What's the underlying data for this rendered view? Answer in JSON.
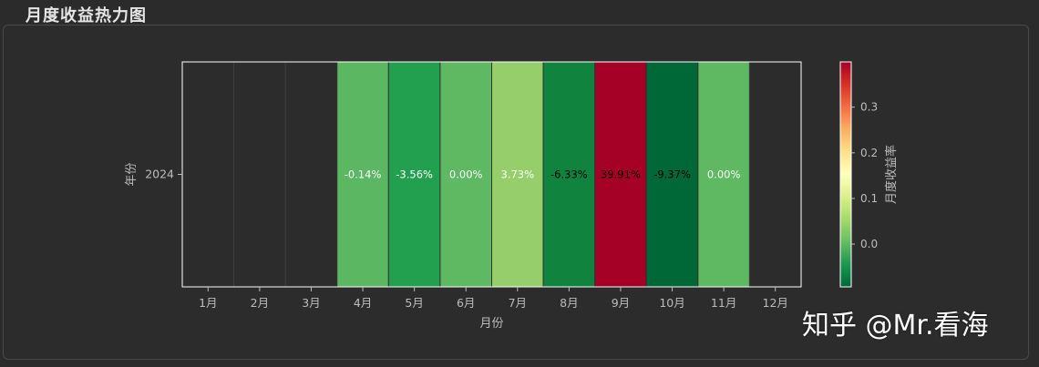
{
  "section": {
    "title": "月度收益热力图"
  },
  "watermark": "知乎 @Mr.看海",
  "colors": {
    "background": "#2b2b2b",
    "plot_empty": "#2c2c2c",
    "axis": "#ffffff",
    "label": "#bdbdbd"
  },
  "chart_data": {
    "type": "heatmap",
    "xlabel": "月份",
    "ylabel": "年份",
    "colorbar_label": "月度收益率",
    "colormap": "RdYlGn_r",
    "colorbar_ticks": [
      0.0,
      0.1,
      0.2,
      0.3
    ],
    "colorbar_ticklabels": [
      "0.0",
      "0.1",
      "0.2",
      "0.3"
    ],
    "vmin": -0.0937,
    "vmax": 0.3991,
    "x_categories": [
      "1月",
      "2月",
      "3月",
      "4月",
      "5月",
      "6月",
      "7月",
      "8月",
      "9月",
      "10月",
      "11月",
      "12月"
    ],
    "y_categories": [
      "2024"
    ],
    "cells": [
      {
        "year": "2024",
        "month": "1月",
        "value": null,
        "label": "",
        "color": null
      },
      {
        "year": "2024",
        "month": "2月",
        "value": null,
        "label": "",
        "color": null
      },
      {
        "year": "2024",
        "month": "3月",
        "value": null,
        "label": "",
        "color": null
      },
      {
        "year": "2024",
        "month": "4月",
        "value": -0.0014,
        "label": "-0.14%",
        "color": "#5cb762"
      },
      {
        "year": "2024",
        "month": "5月",
        "value": -0.0356,
        "label": "-3.56%",
        "color": "#23a04f"
      },
      {
        "year": "2024",
        "month": "6月",
        "value": 0.0,
        "label": "0.00%",
        "color": "#5fb862"
      },
      {
        "year": "2024",
        "month": "7月",
        "value": 0.0373,
        "label": "3.73%",
        "color": "#95ce6a"
      },
      {
        "year": "2024",
        "month": "8月",
        "value": -0.0633,
        "label": "-6.33%",
        "color": "#10843f"
      },
      {
        "year": "2024",
        "month": "9月",
        "value": 0.3991,
        "label": "39.91%",
        "color": "#a50026"
      },
      {
        "year": "2024",
        "month": "10月",
        "value": -0.0937,
        "label": "-9.37%",
        "color": "#006837"
      },
      {
        "year": "2024",
        "month": "11月",
        "value": 0.0,
        "label": "0.00%",
        "color": "#5fb862"
      },
      {
        "year": "2024",
        "month": "12月",
        "value": null,
        "label": "",
        "color": null
      }
    ],
    "label_colors": {
      "4月": "#ffffff",
      "5月": "#ffffff",
      "6月": "#ffffff",
      "7月": "#ffffff",
      "8月": "#000000",
      "9月": "#000000",
      "10月": "#000000",
      "11月": "#ffffff"
    }
  }
}
